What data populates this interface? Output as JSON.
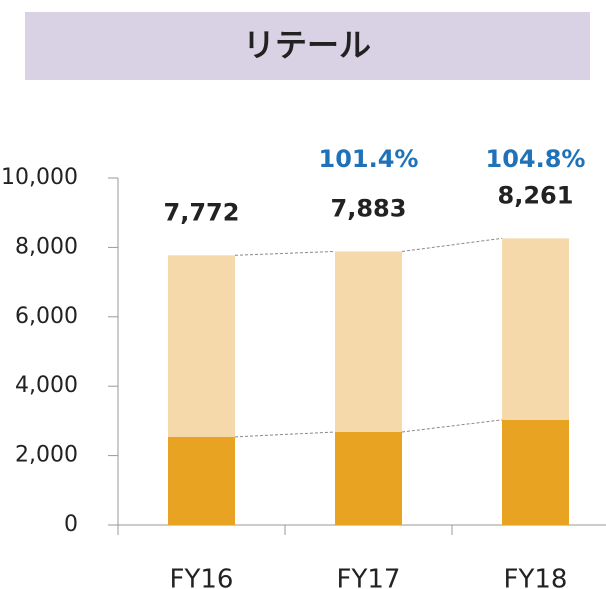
{
  "chart_data": {
    "type": "stacked_bar",
    "title": "リテール",
    "categories": [
      "FY16",
      "FY17",
      "FY18"
    ],
    "series": [
      {
        "color": "#e8a323",
        "values": [
          2540,
          2680,
          3030
        ]
      },
      {
        "color": "#f5d9ab",
        "values": [
          5232,
          5203,
          5231
        ]
      }
    ],
    "totals": [
      7772,
      7883,
      8261
    ],
    "total_labels": [
      "7,772",
      "7,883",
      "8,261"
    ],
    "growth": {
      "values": [
        101.4,
        104.8
      ],
      "value_labels": [
        "101.4%",
        "104.8%"
      ],
      "color": "#1f72b8"
    },
    "ylim": [
      0,
      10000
    ],
    "yticks": [
      0,
      {
        "value": 2000,
        "label": "2,000"
      },
      {
        "value": 4000,
        "label": "4,000"
      },
      {
        "value": 6000,
        "label": "6,000"
      },
      {
        "value": 8000,
        "label": "8,000"
      },
      {
        "value": 10000,
        "label": "10,000"
      }
    ]
  }
}
